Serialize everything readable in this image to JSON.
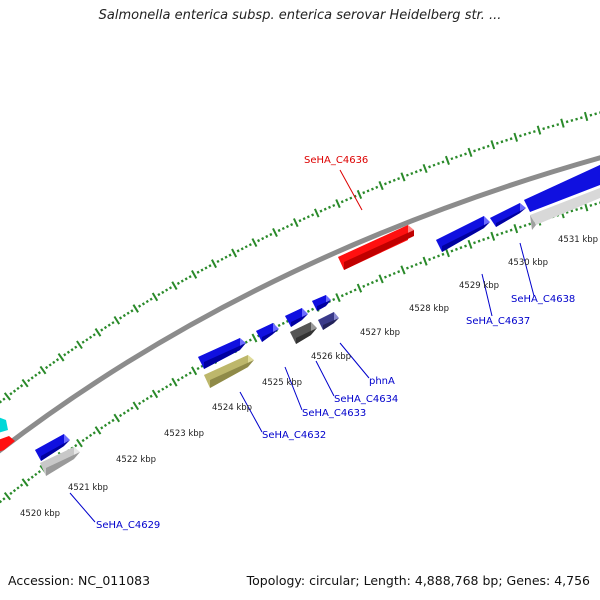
{
  "title": "Salmonella enterica subsp. enterica serovar Heidelberg str. ...",
  "footer": {
    "accession": "Accession: NC_011083",
    "summary": "Topology: circular; Length: 4,888,768 bp; Genes: 4,756"
  },
  "colors": {
    "backbone": "#8c8c8c",
    "tick": "#2a8a2a",
    "gene_forward": "#1010e0",
    "gene_highlight": "#ff1010",
    "rna_gray": "#b8b8b8",
    "pseudo_dark": "#555555",
    "khaki": "#bdb76b",
    "navy": "#3a3a8a",
    "cyan": "#00d8d8",
    "label_blue": "#0000cc",
    "label_red": "#dd0000"
  },
  "scale_labels": [
    "4520 kbp",
    "4521 kbp",
    "4522 kbp",
    "4523 kbp",
    "4524 kbp",
    "4525 kbp",
    "4526 kbp",
    "4527 kbp",
    "4528 kbp",
    "4529 kbp",
    "4530 kbp",
    "4531 kbp"
  ],
  "gene_labels": {
    "seha_c4636": "SeHA_C4636",
    "seha_c4629": "SeHA_C4629",
    "seha_c4632": "SeHA_C4632",
    "seha_c4633": "SeHA_C4633",
    "seha_c4634": "SeHA_C4634",
    "phna": "phnA",
    "seha_c4637": "SeHA_C4637",
    "seha_c4638": "SeHA_C4638"
  }
}
